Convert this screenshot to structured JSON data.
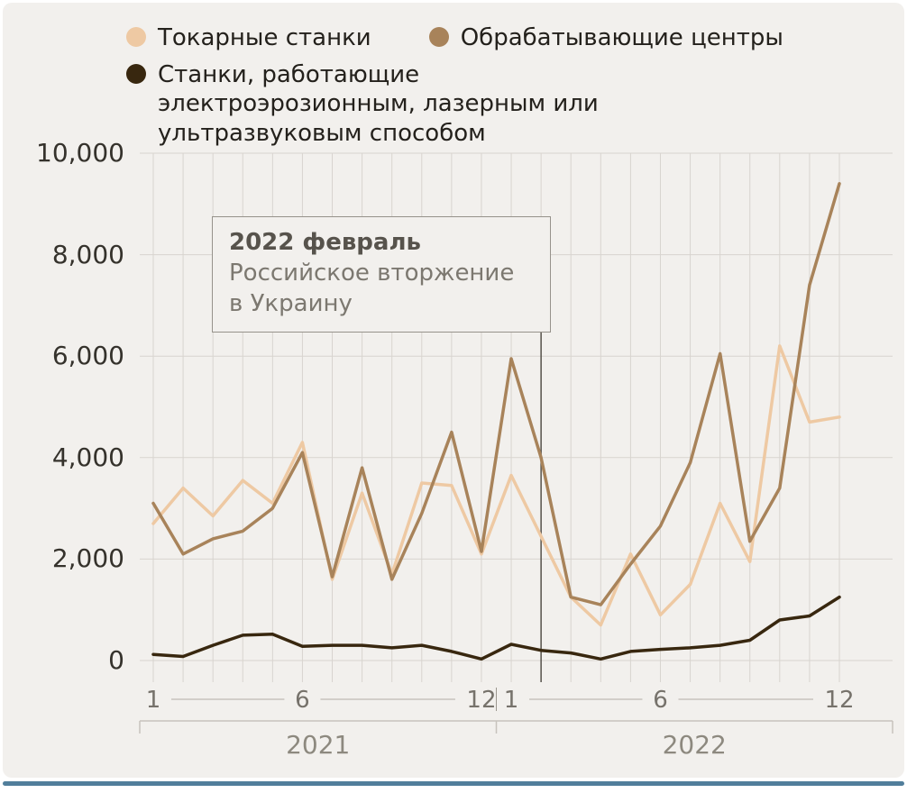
{
  "legend": {
    "items": [
      {
        "key": "lathes",
        "label": "Токарные станки",
        "color": "#eec9a3"
      },
      {
        "key": "machining-centers",
        "label": "Обрабатывающие центры",
        "color": "#a8835a"
      },
      {
        "key": "edm-laser-ultrasonic",
        "label": "Станки, работающие электроэрозионным, лазерным или ультразвуковым способом",
        "color": "#38270f"
      }
    ]
  },
  "annotation": {
    "title": "2022 февраль",
    "text": "Российское вторжение в Украину",
    "month_index": 13,
    "line_color": "#56524c"
  },
  "chart_data": {
    "type": "line",
    "title": "",
    "x_unit": "month",
    "years": [
      "2021",
      "2022"
    ],
    "months": [
      1,
      2,
      3,
      4,
      5,
      6,
      7,
      8,
      9,
      10,
      11,
      12,
      1,
      2,
      3,
      4,
      5,
      6,
      7,
      8,
      9,
      10,
      11,
      12
    ],
    "series": [
      {
        "key": "lathes",
        "name": "Токарные станки",
        "color": "#eec9a3",
        "values": [
          2700,
          3400,
          2850,
          3550,
          3100,
          4300,
          1600,
          3300,
          1700,
          3500,
          3450,
          2100,
          3650,
          2450,
          1250,
          700,
          2100,
          900,
          1500,
          3100,
          1950,
          6200,
          4700,
          4800
        ]
      },
      {
        "key": "machining-centers",
        "name": "Обрабатывающие центры",
        "color": "#a8835a",
        "values": [
          3100,
          2100,
          2400,
          2550,
          3000,
          4100,
          1650,
          3800,
          1600,
          2900,
          4500,
          2150,
          5950,
          4000,
          1250,
          1100,
          1900,
          2650,
          3900,
          6050,
          2350,
          3400,
          7400,
          9400
        ]
      },
      {
        "key": "edm-laser-ultrasonic",
        "name": "Станки, работающие электроэрозионным, лазерным или ультразвуковым способом",
        "color": "#38270f",
        "values": [
          120,
          80,
          300,
          500,
          520,
          280,
          300,
          300,
          250,
          300,
          180,
          30,
          320,
          200,
          150,
          30,
          180,
          220,
          250,
          300,
          400,
          800,
          880,
          1250
        ]
      }
    ],
    "ylim": [
      0,
      10000
    ],
    "yticks": [
      0,
      2000,
      4000,
      6000,
      8000,
      10000
    ],
    "ytick_labels": [
      "0",
      "2,000",
      "4,000",
      "6,000",
      "8,000",
      "10,000"
    ],
    "xticks": [
      {
        "label": "1",
        "index": 0
      },
      {
        "label": "6",
        "index": 5
      },
      {
        "label": "12",
        "index": 11
      },
      {
        "label": "1",
        "index": 12
      },
      {
        "label": "6",
        "index": 17
      },
      {
        "label": "12",
        "index": 23
      }
    ],
    "grid": true,
    "grid_color": "#d8d4cf",
    "legend_position": "top"
  },
  "colors": {
    "background": "#f2f0ed",
    "accent_bar": "#517e9b",
    "axis_text": "#35322c",
    "tick_text": "#76726b",
    "year_text": "#8d897f"
  }
}
